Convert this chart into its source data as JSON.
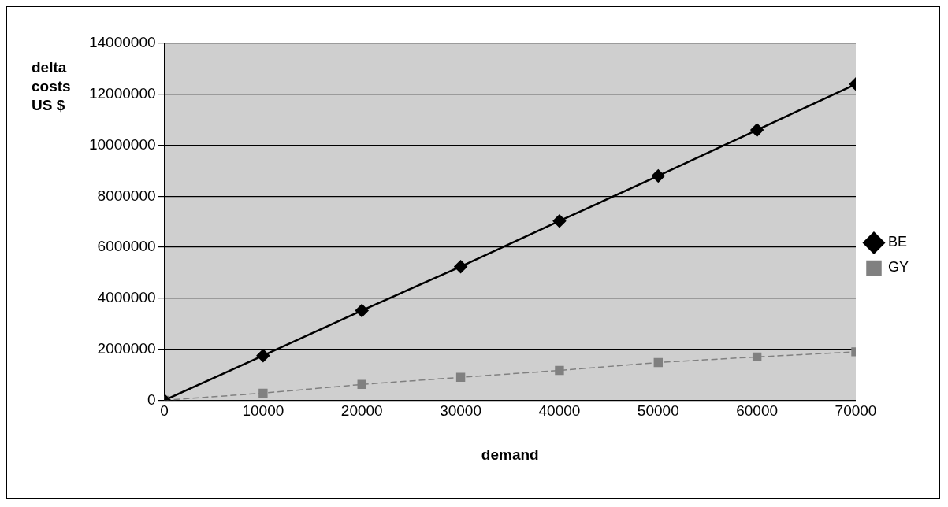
{
  "chart_data": {
    "type": "line",
    "xlabel": "demand",
    "ylabel": "delta costs US $",
    "x": [
      0,
      10000,
      20000,
      30000,
      40000,
      50000,
      60000,
      70000
    ],
    "xlim": [
      0,
      70000
    ],
    "xticks": [
      0,
      10000,
      20000,
      30000,
      40000,
      50000,
      60000,
      70000
    ],
    "ylim": [
      0,
      14000000
    ],
    "yticks": [
      0,
      2000000,
      4000000,
      6000000,
      8000000,
      10000000,
      12000000,
      14000000
    ],
    "grid": "y",
    "legend": "right",
    "series": [
      {
        "name": "BE",
        "color": "#000000",
        "marker": "diamond",
        "line_style": "solid",
        "values": [
          0,
          1750000,
          3520000,
          5240000,
          7030000,
          8800000,
          10600000,
          12400000
        ]
      },
      {
        "name": "GY",
        "color": "#808080",
        "marker": "square",
        "line_style": "dashed",
        "values": [
          0,
          280000,
          620000,
          900000,
          1170000,
          1480000,
          1700000,
          1900000
        ]
      }
    ]
  }
}
